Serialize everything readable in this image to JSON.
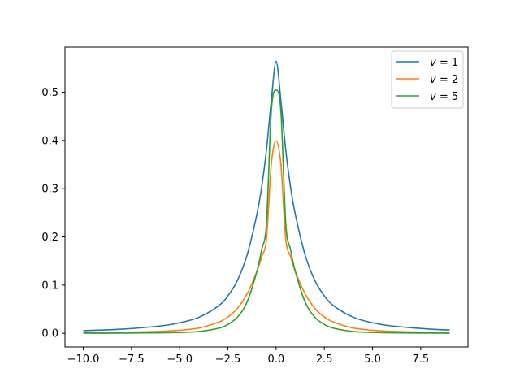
{
  "chart_data": {
    "type": "line",
    "title": "",
    "xlabel": "",
    "ylabel": "",
    "xlim": [
      -10.95,
      9.95
    ],
    "ylim": [
      -0.0283,
      0.5934
    ],
    "xticks": [
      -10.0,
      -7.5,
      -5.0,
      -2.5,
      0.0,
      2.5,
      5.0,
      7.5
    ],
    "xtick_labels": [
      "−10.0",
      "−7.5",
      "−5.0",
      "−2.5",
      "0.0",
      "2.5",
      "5.0",
      "7.5"
    ],
    "yticks": [
      0.0,
      0.1,
      0.2,
      0.3,
      0.4,
      0.5
    ],
    "ytick_labels": [
      "0.0",
      "0.1",
      "0.2",
      "0.3",
      "0.4",
      "0.5"
    ],
    "grid": false,
    "legend_position": "top-right",
    "series": [
      {
        "name": "v = 1",
        "legend_var": "v",
        "legend_value": "1",
        "color": "#1f77b4",
        "x": [
          -10,
          -8,
          -6,
          -5,
          -4,
          -3,
          -2.5,
          -2,
          -1.5,
          -1,
          -0.75,
          -0.5,
          -0.25,
          0,
          0.25,
          0.5,
          0.75,
          1,
          1.5,
          2,
          2.5,
          3,
          4,
          5,
          6,
          8,
          9
        ],
        "y": [
          0.0056,
          0.0087,
          0.0153,
          0.0218,
          0.0333,
          0.0566,
          0.0776,
          0.1103,
          0.163,
          0.246,
          0.303,
          0.38,
          0.482,
          0.564,
          0.482,
          0.38,
          0.303,
          0.246,
          0.163,
          0.1103,
          0.0776,
          0.0566,
          0.0333,
          0.0218,
          0.0153,
          0.0087,
          0.0069
        ]
      },
      {
        "name": "v = 2",
        "legend_var": "v",
        "legend_value": "2",
        "color": "#ff7f0e",
        "x": [
          -10,
          -8,
          -6,
          -5,
          -4,
          -3,
          -2.5,
          -2,
          -1.5,
          -1,
          -0.75,
          -0.5,
          -0.25,
          0,
          0.25,
          0.5,
          0.75,
          1,
          1.5,
          2,
          2.5,
          3,
          4,
          5,
          6,
          8,
          9
        ],
        "y": [
          0.0012,
          0.002,
          0.004,
          0.0063,
          0.011,
          0.0229,
          0.0339,
          0.0521,
          0.0822,
          0.128,
          0.159,
          0.196,
          0.35,
          0.399,
          0.35,
          0.196,
          0.159,
          0.128,
          0.0822,
          0.0521,
          0.0339,
          0.0229,
          0.011,
          0.0063,
          0.004,
          0.002,
          0.0015
        ]
      },
      {
        "name": "v = 5",
        "legend_var": "v",
        "legend_value": "5",
        "color": "#2ca02c",
        "x": [
          -10,
          -8,
          -6,
          -5,
          -4,
          -3,
          -2.5,
          -2,
          -1.5,
          -1,
          -0.75,
          -0.5,
          -0.25,
          0,
          0.25,
          0.5,
          0.75,
          1,
          1.5,
          2,
          2.5,
          3,
          4,
          5,
          6,
          8,
          9
        ],
        "y": [
          0.0002,
          0.0004,
          0.001,
          0.0018,
          0.0038,
          0.0104,
          0.0184,
          0.0338,
          0.0653,
          0.128,
          0.173,
          0.228,
          0.46,
          0.504,
          0.46,
          0.228,
          0.173,
          0.128,
          0.0653,
          0.0338,
          0.0184,
          0.0104,
          0.0038,
          0.0018,
          0.001,
          0.0004,
          0.0003
        ]
      }
    ]
  }
}
